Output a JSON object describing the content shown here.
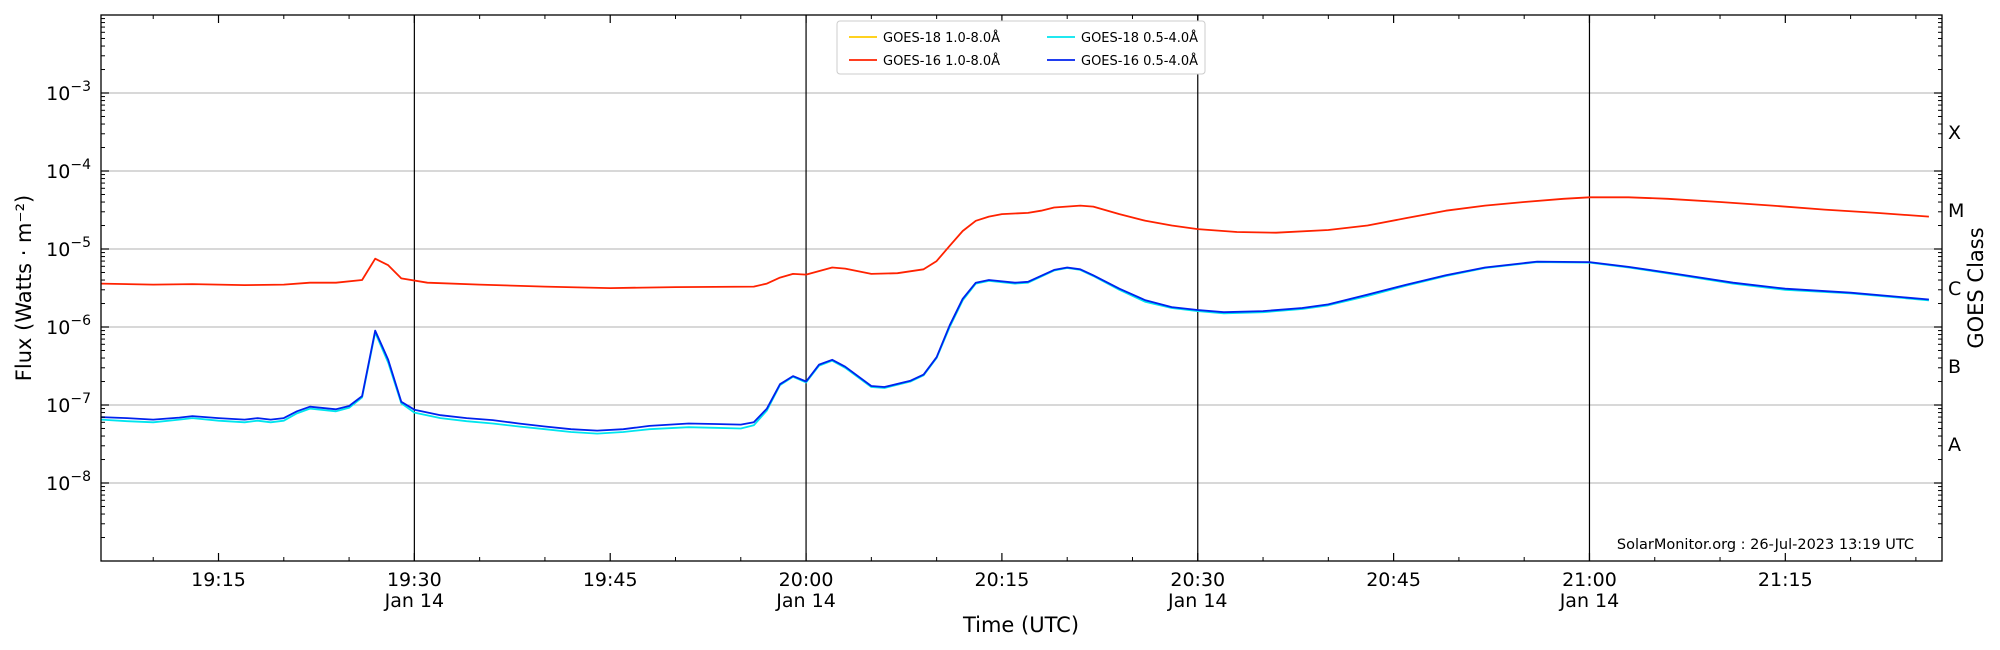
{
  "chart_data": {
    "type": "line",
    "xlabel": "Time (UTC)",
    "ylabel": "Flux (Watts · m⁻²)",
    "right_axis_label": "GOES Class",
    "credit": "SolarMonitor.org : 26-Jul-2023 13:19 UTC",
    "y_scale": "log",
    "xlim": [
      "19:06",
      "21:27"
    ],
    "ylim": [
      1e-09,
      0.01
    ],
    "grid": "horizontal",
    "legend_position": "top-center",
    "x_tick_labels": [
      {
        "t": "19:15",
        "text": "19:15",
        "sub": ""
      },
      {
        "t": "19:30",
        "text": "19:30",
        "sub": "Jan 14"
      },
      {
        "t": "19:45",
        "text": "19:45",
        "sub": ""
      },
      {
        "t": "20:00",
        "text": "20:00",
        "sub": "Jan 14"
      },
      {
        "t": "20:15",
        "text": "20:15",
        "sub": ""
      },
      {
        "t": "20:30",
        "text": "20:30",
        "sub": "Jan 14"
      },
      {
        "t": "20:45",
        "text": "20:45",
        "sub": ""
      },
      {
        "t": "21:00",
        "text": "21:00",
        "sub": "Jan 14"
      },
      {
        "t": "21:15",
        "text": "21:15",
        "sub": ""
      }
    ],
    "vertical_lines": [
      "19:30",
      "20:00",
      "20:30",
      "21:00"
    ],
    "y_ticks": [
      {
        "exp": -8,
        "base": "10",
        "sup": "−8"
      },
      {
        "exp": -7,
        "base": "10",
        "sup": "−7"
      },
      {
        "exp": -6,
        "base": "10",
        "sup": "−6"
      },
      {
        "exp": -5,
        "base": "10",
        "sup": "−5"
      },
      {
        "exp": -4,
        "base": "10",
        "sup": "−4"
      },
      {
        "exp": -3,
        "base": "10",
        "sup": "−3"
      }
    ],
    "goes_classes": [
      {
        "label": "A",
        "exp": -7.5
      },
      {
        "label": "B",
        "exp": -6.5
      },
      {
        "label": "C",
        "exp": -5.5
      },
      {
        "label": "M",
        "exp": -4.5
      },
      {
        "label": "X",
        "exp": -3.5
      }
    ],
    "series": [
      {
        "name": "GOES-18 1.0-8.0Å",
        "color": "#ffcc00",
        "points": []
      },
      {
        "name": "GOES-16 1.0-8.0Å",
        "color": "#ff2200",
        "points": [
          [
            "19:06",
            3.6e-06
          ],
          [
            "19:10",
            3.5e-06
          ],
          [
            "19:13",
            3.55e-06
          ],
          [
            "19:17",
            3.45e-06
          ],
          [
            "19:20",
            3.5e-06
          ],
          [
            "19:22",
            3.7e-06
          ],
          [
            "19:24",
            3.7e-06
          ],
          [
            "19:26",
            4e-06
          ],
          [
            "19:27",
            7.5e-06
          ],
          [
            "19:28",
            6.2e-06
          ],
          [
            "19:29",
            4.2e-06
          ],
          [
            "19:31",
            3.7e-06
          ],
          [
            "19:35",
            3.5e-06
          ],
          [
            "19:40",
            3.3e-06
          ],
          [
            "19:45",
            3.15e-06
          ],
          [
            "19:50",
            3.25e-06
          ],
          [
            "19:56",
            3.3e-06
          ],
          [
            "19:57",
            3.6e-06
          ],
          [
            "19:58",
            4.3e-06
          ],
          [
            "19:59",
            4.8e-06
          ],
          [
            "20:00",
            4.7e-06
          ],
          [
            "20:02",
            5.8e-06
          ],
          [
            "20:03",
            5.6e-06
          ],
          [
            "20:05",
            4.8e-06
          ],
          [
            "20:07",
            4.9e-06
          ],
          [
            "20:09",
            5.5e-06
          ],
          [
            "20:10",
            7e-06
          ],
          [
            "20:11",
            1.1e-05
          ],
          [
            "20:12",
            1.7e-05
          ],
          [
            "20:13",
            2.3e-05
          ],
          [
            "20:14",
            2.6e-05
          ],
          [
            "20:15",
            2.8e-05
          ],
          [
            "20:17",
            2.9e-05
          ],
          [
            "20:18",
            3.1e-05
          ],
          [
            "20:19",
            3.4e-05
          ],
          [
            "20:21",
            3.6e-05
          ],
          [
            "20:22",
            3.5e-05
          ],
          [
            "20:24",
            2.8e-05
          ],
          [
            "20:26",
            2.3e-05
          ],
          [
            "20:28",
            2e-05
          ],
          [
            "20:30",
            1.8e-05
          ],
          [
            "20:33",
            1.65e-05
          ],
          [
            "20:36",
            1.62e-05
          ],
          [
            "20:40",
            1.75e-05
          ],
          [
            "20:43",
            2e-05
          ],
          [
            "20:46",
            2.5e-05
          ],
          [
            "20:49",
            3.1e-05
          ],
          [
            "20:52",
            3.6e-05
          ],
          [
            "20:55",
            4e-05
          ],
          [
            "20:58",
            4.4e-05
          ],
          [
            "21:00",
            4.6e-05
          ],
          [
            "21:03",
            4.6e-05
          ],
          [
            "21:06",
            4.4e-05
          ],
          [
            "21:10",
            4e-05
          ],
          [
            "21:14",
            3.6e-05
          ],
          [
            "21:18",
            3.2e-05
          ],
          [
            "21:22",
            2.9e-05
          ],
          [
            "21:26",
            2.6e-05
          ]
        ]
      },
      {
        "name": "GOES-18 0.5-4.0Å",
        "color": "#00e5ee",
        "points": [
          [
            "19:06",
            6.5e-08
          ],
          [
            "19:08",
            6.2e-08
          ],
          [
            "19:10",
            6e-08
          ],
          [
            "19:12",
            6.5e-08
          ],
          [
            "19:13",
            6.8e-08
          ],
          [
            "19:15",
            6.3e-08
          ],
          [
            "19:17",
            6e-08
          ],
          [
            "19:18",
            6.3e-08
          ],
          [
            "19:19",
            6e-08
          ],
          [
            "19:20",
            6.3e-08
          ],
          [
            "19:21",
            7.8e-08
          ],
          [
            "19:22",
            9e-08
          ],
          [
            "19:24",
            8.3e-08
          ],
          [
            "19:25",
            9.2e-08
          ],
          [
            "19:26",
            1.25e-07
          ],
          [
            "19:27",
            8.5e-07
          ],
          [
            "19:28",
            3.5e-07
          ],
          [
            "19:29",
            1.05e-07
          ],
          [
            "19:30",
            8e-08
          ],
          [
            "19:32",
            6.8e-08
          ],
          [
            "19:34",
            6.2e-08
          ],
          [
            "19:36",
            5.8e-08
          ],
          [
            "19:38",
            5.3e-08
          ],
          [
            "19:40",
            4.9e-08
          ],
          [
            "19:42",
            4.5e-08
          ],
          [
            "19:44",
            4.3e-08
          ],
          [
            "19:46",
            4.5e-08
          ],
          [
            "19:48",
            4.9e-08
          ],
          [
            "19:51",
            5.2e-08
          ],
          [
            "19:53",
            5.1e-08
          ],
          [
            "19:55",
            5e-08
          ],
          [
            "19:56",
            5.5e-08
          ],
          [
            "19:57",
            8.5e-08
          ],
          [
            "19:58",
            1.8e-07
          ],
          [
            "19:59",
            2.3e-07
          ],
          [
            "20:00",
            1.95e-07
          ],
          [
            "20:01",
            3.2e-07
          ],
          [
            "20:02",
            3.7e-07
          ],
          [
            "20:03",
            3e-07
          ],
          [
            "20:05",
            1.7e-07
          ],
          [
            "20:06",
            1.65e-07
          ],
          [
            "20:08",
            2e-07
          ],
          [
            "20:09",
            2.4e-07
          ],
          [
            "20:10",
            4e-07
          ],
          [
            "20:11",
            1e-06
          ],
          [
            "20:12",
            2.2e-06
          ],
          [
            "20:13",
            3.6e-06
          ],
          [
            "20:14",
            3.9e-06
          ],
          [
            "20:16",
            3.6e-06
          ],
          [
            "20:17",
            3.7e-06
          ],
          [
            "20:19",
            5.3e-06
          ],
          [
            "20:20",
            5.7e-06
          ],
          [
            "20:21",
            5.4e-06
          ],
          [
            "20:22",
            4.5e-06
          ],
          [
            "20:24",
            3e-06
          ],
          [
            "20:26",
            2.1e-06
          ],
          [
            "20:28",
            1.75e-06
          ],
          [
            "20:30",
            1.6e-06
          ],
          [
            "20:32",
            1.5e-06
          ],
          [
            "20:35",
            1.55e-06
          ],
          [
            "20:38",
            1.7e-06
          ],
          [
            "20:40",
            1.9e-06
          ],
          [
            "20:43",
            2.5e-06
          ],
          [
            "20:46",
            3.4e-06
          ],
          [
            "20:49",
            4.5e-06
          ],
          [
            "20:52",
            5.7e-06
          ],
          [
            "20:56",
            6.8e-06
          ],
          [
            "21:00",
            6.7e-06
          ],
          [
            "21:03",
            5.8e-06
          ],
          [
            "21:07",
            4.6e-06
          ],
          [
            "21:11",
            3.6e-06
          ],
          [
            "21:15",
            3e-06
          ],
          [
            "21:20",
            2.7e-06
          ],
          [
            "21:26",
            2.2e-06
          ]
        ]
      },
      {
        "name": "GOES-16 0.5-4.0Å",
        "color": "#0022ee",
        "points": [
          [
            "19:06",
            7e-08
          ],
          [
            "19:08",
            6.8e-08
          ],
          [
            "19:10",
            6.5e-08
          ],
          [
            "19:12",
            6.9e-08
          ],
          [
            "19:13",
            7.2e-08
          ],
          [
            "19:15",
            6.8e-08
          ],
          [
            "19:17",
            6.5e-08
          ],
          [
            "19:18",
            6.8e-08
          ],
          [
            "19:19",
            6.5e-08
          ],
          [
            "19:20",
            6.8e-08
          ],
          [
            "19:21",
            8.3e-08
          ],
          [
            "19:22",
            9.5e-08
          ],
          [
            "19:24",
            8.8e-08
          ],
          [
            "19:25",
            9.7e-08
          ],
          [
            "19:26",
            1.3e-07
          ],
          [
            "19:27",
            9e-07
          ],
          [
            "19:28",
            3.8e-07
          ],
          [
            "19:29",
            1.1e-07
          ],
          [
            "19:30",
            8.7e-08
          ],
          [
            "19:32",
            7.4e-08
          ],
          [
            "19:34",
            6.8e-08
          ],
          [
            "19:36",
            6.4e-08
          ],
          [
            "19:38",
            5.8e-08
          ],
          [
            "19:40",
            5.3e-08
          ],
          [
            "19:42",
            4.9e-08
          ],
          [
            "19:44",
            4.7e-08
          ],
          [
            "19:46",
            4.9e-08
          ],
          [
            "19:48",
            5.4e-08
          ],
          [
            "19:51",
            5.8e-08
          ],
          [
            "19:53",
            5.7e-08
          ],
          [
            "19:55",
            5.6e-08
          ],
          [
            "19:56",
            6e-08
          ],
          [
            "19:57",
            9e-08
          ],
          [
            "19:58",
            1.85e-07
          ],
          [
            "19:59",
            2.35e-07
          ],
          [
            "20:00",
            2e-07
          ],
          [
            "20:01",
            3.3e-07
          ],
          [
            "20:02",
            3.8e-07
          ],
          [
            "20:03",
            3.1e-07
          ],
          [
            "20:05",
            1.75e-07
          ],
          [
            "20:06",
            1.7e-07
          ],
          [
            "20:08",
            2.05e-07
          ],
          [
            "20:09",
            2.45e-07
          ],
          [
            "20:10",
            4.1e-07
          ],
          [
            "20:11",
            1.05e-06
          ],
          [
            "20:12",
            2.3e-06
          ],
          [
            "20:13",
            3.7e-06
          ],
          [
            "20:14",
            4e-06
          ],
          [
            "20:16",
            3.7e-06
          ],
          [
            "20:17",
            3.8e-06
          ],
          [
            "20:19",
            5.4e-06
          ],
          [
            "20:20",
            5.8e-06
          ],
          [
            "20:21",
            5.5e-06
          ],
          [
            "20:22",
            4.6e-06
          ],
          [
            "20:24",
            3.1e-06
          ],
          [
            "20:26",
            2.2e-06
          ],
          [
            "20:28",
            1.8e-06
          ],
          [
            "20:30",
            1.65e-06
          ],
          [
            "20:32",
            1.55e-06
          ],
          [
            "20:35",
            1.6e-06
          ],
          [
            "20:38",
            1.75e-06
          ],
          [
            "20:40",
            1.95e-06
          ],
          [
            "20:43",
            2.6e-06
          ],
          [
            "20:46",
            3.5e-06
          ],
          [
            "20:49",
            4.6e-06
          ],
          [
            "20:52",
            5.8e-06
          ],
          [
            "20:56",
            6.9e-06
          ],
          [
            "21:00",
            6.8e-06
          ],
          [
            "21:03",
            5.9e-06
          ],
          [
            "21:07",
            4.7e-06
          ],
          [
            "21:11",
            3.7e-06
          ],
          [
            "21:15",
            3.1e-06
          ],
          [
            "21:20",
            2.75e-06
          ],
          [
            "21:26",
            2.25e-06
          ]
        ]
      }
    ]
  }
}
